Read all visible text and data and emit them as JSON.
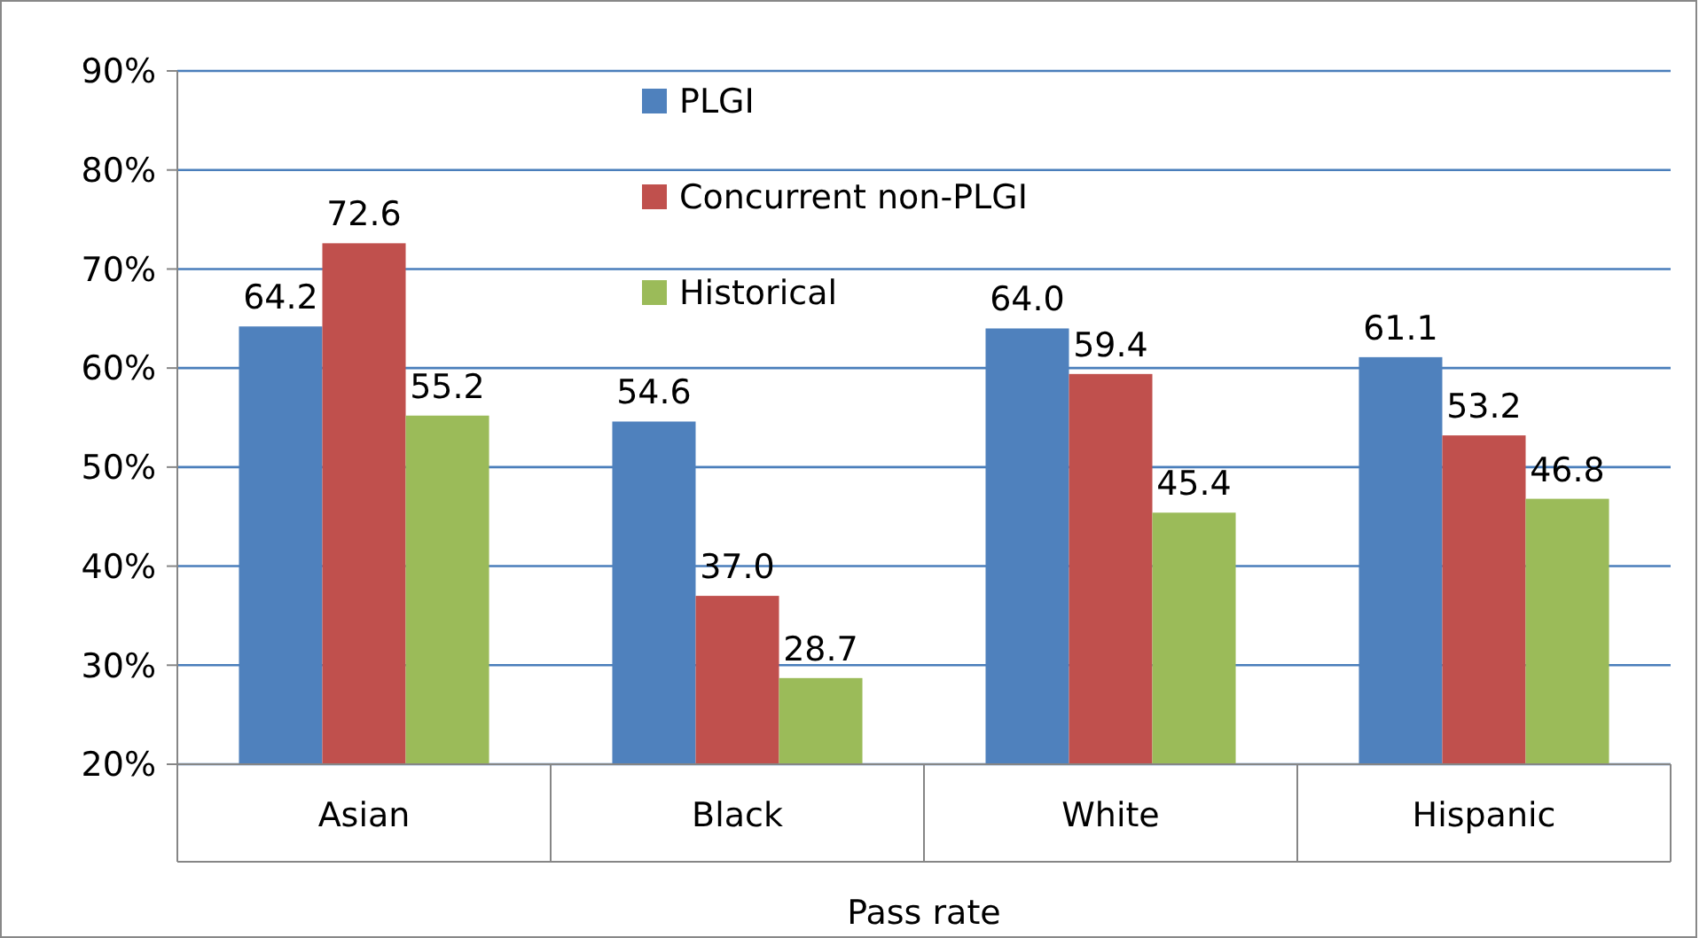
{
  "chart_data": {
    "type": "bar",
    "categories": [
      "Asian",
      "Black",
      "White",
      "Hispanic"
    ],
    "xlabel": "Pass rate",
    "series": [
      {
        "name": "PLGI",
        "color": "#4f81bd",
        "values": [
          64.2,
          54.6,
          64.0,
          61.1
        ],
        "value_labels": [
          "64.2",
          "54.6",
          "64.0",
          "61.1"
        ]
      },
      {
        "name": "Concurrent non-PLGI",
        "color": "#c0504d",
        "values": [
          72.6,
          37.0,
          59.4,
          53.2
        ],
        "value_labels": [
          "72.6",
          "37.0",
          "59.4",
          "53.2"
        ]
      },
      {
        "name": "Historical",
        "color": "#9bbb59",
        "values": [
          55.2,
          28.7,
          45.4,
          46.8
        ],
        "value_labels": [
          "55.2",
          "28.7",
          "45.4",
          "46.8"
        ]
      }
    ],
    "ylim": [
      20,
      90
    ],
    "yticks": [
      {
        "value": 20,
        "label": "20%"
      },
      {
        "value": 30,
        "label": "30%"
      },
      {
        "value": 40,
        "label": "40%"
      },
      {
        "value": 50,
        "label": "50%"
      },
      {
        "value": 60,
        "label": "60%"
      },
      {
        "value": 70,
        "label": "70%"
      },
      {
        "value": 80,
        "label": "80%"
      },
      {
        "value": 90,
        "label": "90%"
      }
    ],
    "grid": "y",
    "legend": "top"
  }
}
